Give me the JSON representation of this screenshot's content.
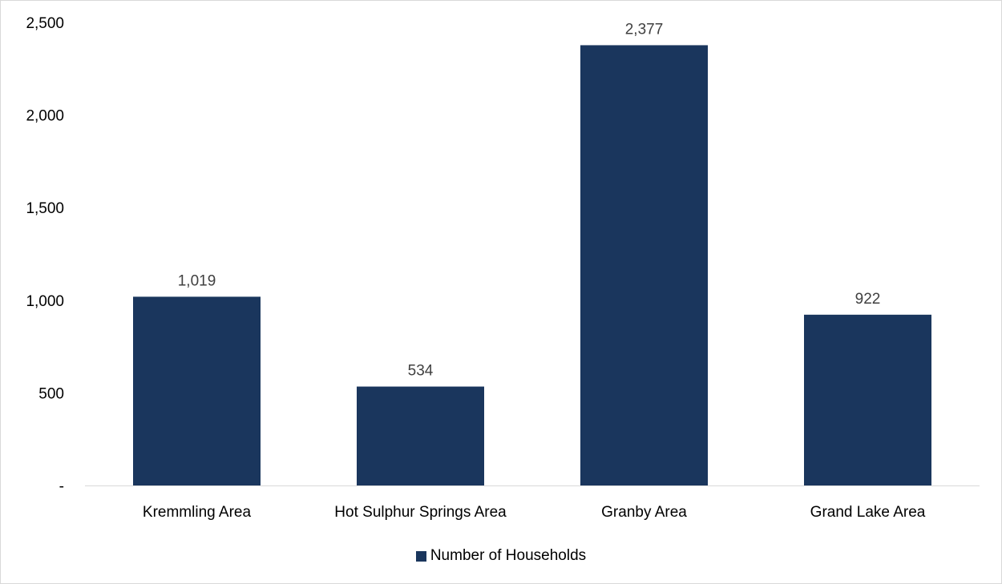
{
  "chart_data": {
    "type": "bar",
    "categories": [
      "Kremmling Area",
      "Hot Sulphur Springs Area",
      "Granby Area",
      "Grand Lake Area"
    ],
    "series": [
      {
        "name": "Number of Households",
        "values": [
          1019,
          534,
          2377,
          922
        ],
        "color": "#1a365d"
      }
    ],
    "data_labels": [
      "1,019",
      "534",
      "2,377",
      "922"
    ],
    "y_ticks": [
      0,
      500,
      1000,
      1500,
      2000,
      2500
    ],
    "y_tick_labels": [
      "-",
      "500",
      "1,000",
      "1,500",
      "2,000",
      "2,500"
    ],
    "ylim": [
      0,
      2500
    ],
    "title": "",
    "xlabel": "",
    "ylabel": "",
    "grid": false,
    "legend_position": "bottom"
  }
}
